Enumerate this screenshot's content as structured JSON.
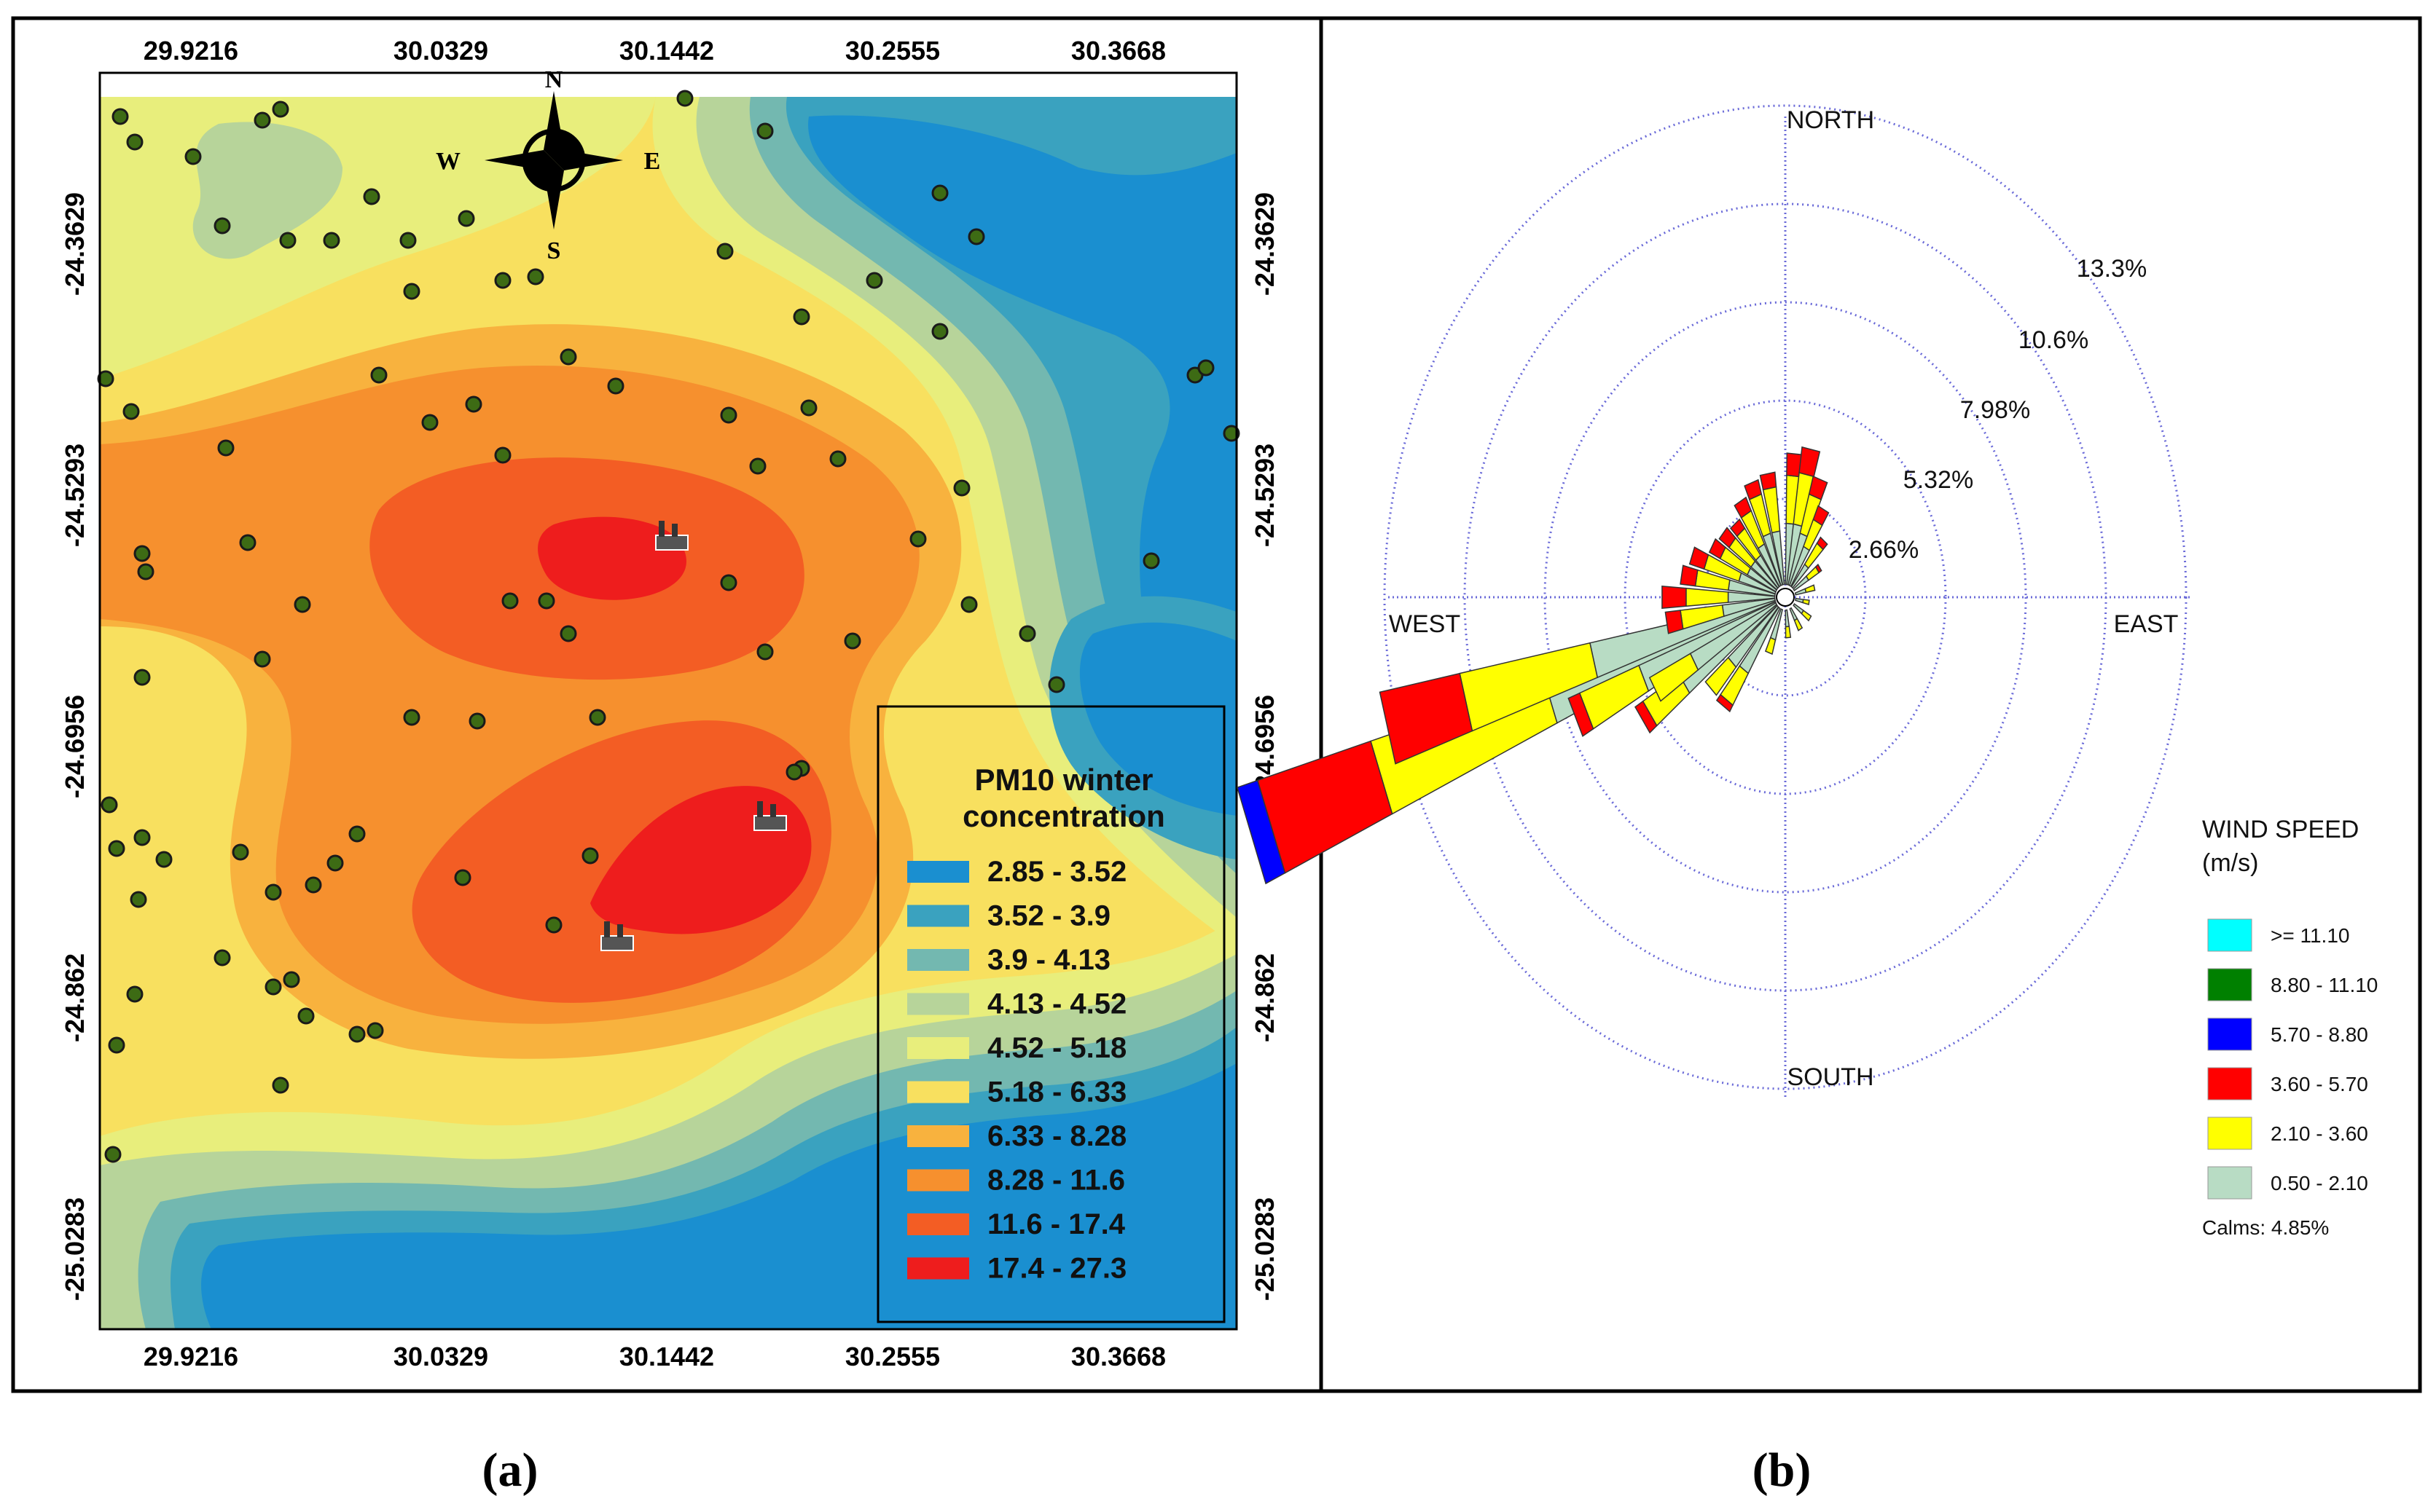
{
  "map": {
    "top_lon_ticks": [
      "29.9216",
      "30.0329",
      "30.1442",
      "30.2555",
      "30.3668"
    ],
    "bottom_lon_ticks": [
      "29.9216",
      "30.0329",
      "30.1442",
      "30.2555",
      "30.3668"
    ],
    "left_lat_ticks": [
      "-24.3629",
      "-24.5293",
      "-24.6956",
      "-24.862",
      "-25.0283"
    ],
    "right_lat_ticks": [
      "-24.3629",
      "-24.5293",
      "-24.6956",
      "-24.862",
      "-25.0283"
    ],
    "compass": {
      "north": "N",
      "south": "S",
      "east": "E",
      "west": "W"
    },
    "legend": {
      "title_line1": "PM10 winter",
      "title_line2": "concentration",
      "items": [
        {
          "label": "2.85 - 3.52",
          "color": "#1a8fd0"
        },
        {
          "label": "3.52 - 3.9",
          "color": "#3aa2bf"
        },
        {
          "label": "3.9 - 4.13",
          "color": "#73b8b0"
        },
        {
          "label": "4.13 - 4.52",
          "color": "#b7d49a"
        },
        {
          "label": "4.52 - 5.18",
          "color": "#e8ee7c"
        },
        {
          "label": "5.18 - 6.33",
          "color": "#f8e05f"
        },
        {
          "label": "6.33 - 8.28",
          "color": "#f8b23e"
        },
        {
          "label": "8.28 - 11.6",
          "color": "#f6902e"
        },
        {
          "label": "11.6 - 17.4",
          "color": "#f35d24"
        },
        {
          "label": "17.4 - 27.3",
          "color": "#ee1d1d"
        }
      ]
    }
  },
  "windrose": {
    "directions": {
      "north": "NORTH",
      "south": "SOUTH",
      "east": "EAST",
      "west": "WEST"
    },
    "ring_labels": [
      "2.66%",
      "5.32%",
      "7.98%",
      "10.6%",
      "13.3%"
    ],
    "legend_title_line1": "WIND SPEED",
    "legend_title_line2": "(m/s)",
    "legend": [
      {
        "label": ">= 11.10",
        "color": "#00ffff"
      },
      {
        "label": "8.80 - 11.10",
        "color": "#008000"
      },
      {
        "label": "5.70 - 8.80",
        "color": "#0000ff"
      },
      {
        "label": "3.60 - 5.70",
        "color": "#ff0000"
      },
      {
        "label": "2.10 - 3.60",
        "color": "#ffff00"
      },
      {
        "label": "0.50 - 2.10",
        "color": "#b8dcc4"
      }
    ],
    "calms": "Calms: 4.85%",
    "petals_deg_from_north": [
      {
        "dir": 250,
        "segments": [
          8.3,
          14.3,
          18.2,
          18.9
        ]
      },
      {
        "dir": 255,
        "segments": [
          6.6,
          11.0,
          13.7
        ]
      },
      {
        "dir": 245,
        "segments": [
          5.2,
          7.3,
          7.7
        ]
      },
      {
        "dir": 235,
        "segments": [
          4.1,
          5.5,
          5.8
        ]
      },
      {
        "dir": 240,
        "segments": [
          3.5,
          5.0
        ]
      },
      {
        "dir": 270,
        "segments": [
          1.9,
          3.3,
          4.1
        ]
      },
      {
        "dir": 280,
        "segments": [
          1.9,
          3.0,
          3.5
        ]
      },
      {
        "dir": 290,
        "segments": [
          1.6,
          2.8,
          3.3
        ]
      },
      {
        "dir": 300,
        "segments": [
          1.4,
          2.4,
          2.8
        ]
      },
      {
        "dir": 310,
        "segments": [
          1.4,
          2.3,
          2.7
        ]
      },
      {
        "dir": 320,
        "segments": [
          1.4,
          2.3,
          2.6
        ]
      },
      {
        "dir": 330,
        "segments": [
          1.6,
          2.6,
          3.0
        ]
      },
      {
        "dir": 340,
        "segments": [
          1.8,
          2.9,
          3.3
        ]
      },
      {
        "dir": 350,
        "segments": [
          1.8,
          3.0,
          3.4
        ]
      },
      {
        "dir": 5,
        "segments": [
          2.0,
          3.3,
          3.9
        ]
      },
      {
        "dir": 12,
        "segments": [
          2.0,
          3.4,
          4.1
        ]
      },
      {
        "dir": 20,
        "segments": [
          1.8,
          2.9,
          3.4
        ]
      },
      {
        "dir": 28,
        "segments": [
          1.5,
          2.3,
          2.7
        ]
      },
      {
        "dir": 40,
        "segments": [
          1.1,
          1.8,
          2.0
        ]
      },
      {
        "dir": 55,
        "segments": [
          0.9,
          1.3,
          1.4
        ]
      },
      {
        "dir": 75,
        "segments": [
          0.7,
          1.0
        ]
      },
      {
        "dir": 100,
        "segments": [
          0.6,
          0.8
        ]
      },
      {
        "dir": 125,
        "segments": [
          0.7,
          1.0
        ]
      },
      {
        "dir": 150,
        "segments": [
          0.7,
          1.0
        ]
      },
      {
        "dir": 175,
        "segments": [
          0.8,
          1.1
        ]
      },
      {
        "dir": 200,
        "segments": [
          1.2,
          1.6
        ]
      },
      {
        "dir": 215,
        "segments": [
          2.4,
          3.4,
          3.6
        ]
      },
      {
        "dir": 225,
        "segments": [
          2.5,
          3.5
        ]
      },
      {
        "dir": 260,
        "segments": [
          2.1,
          3.5,
          4.0
        ]
      }
    ]
  },
  "captions": {
    "left": "(a)",
    "right": "(b)"
  }
}
